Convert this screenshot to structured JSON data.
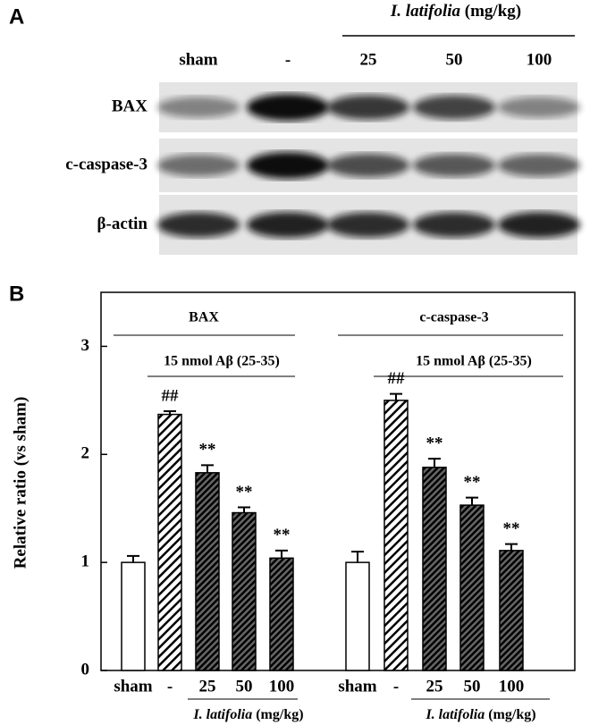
{
  "panel_a": {
    "label": "A",
    "treatment": "I. latifolia",
    "unit": "(mg/kg)",
    "lanes": [
      "sham",
      "-",
      "25",
      "50",
      "100"
    ],
    "rows": [
      "BAX",
      "c-caspase-3",
      "β-actin"
    ]
  },
  "chart_data": {
    "type": "bar",
    "panel_label": "B",
    "ylabel": "Relative ratio (vs sham)",
    "ylim": [
      0,
      3.5
    ],
    "yticks": [
      0,
      1,
      2,
      3
    ],
    "color": "#000000",
    "groups": [
      {
        "name": "BAX",
        "treatment_label": "15 nmol Aβ (25-35)",
        "categories": [
          "sham",
          "-",
          "25",
          "50",
          "100"
        ],
        "values": [
          1.0,
          2.37,
          1.83,
          1.46,
          1.04
        ],
        "errors": [
          0.06,
          0.03,
          0.07,
          0.05,
          0.07
        ],
        "annotations": [
          null,
          "##",
          "**",
          "**",
          "**"
        ],
        "xlabel_treatment": "I. latifolia",
        "xlabel_unit": "(mg/kg)"
      },
      {
        "name": "c-caspase-3",
        "treatment_label": "15 nmol Aβ (25-35)",
        "categories": [
          "sham",
          "-",
          "25",
          "50",
          "100"
        ],
        "values": [
          1.0,
          2.5,
          1.88,
          1.53,
          1.11
        ],
        "errors": [
          0.1,
          0.06,
          0.08,
          0.07,
          0.06
        ],
        "annotations": [
          null,
          "##",
          "**",
          "**",
          "**"
        ],
        "xlabel_treatment": "I. latifolia",
        "xlabel_unit": "(mg/kg)"
      }
    ]
  }
}
